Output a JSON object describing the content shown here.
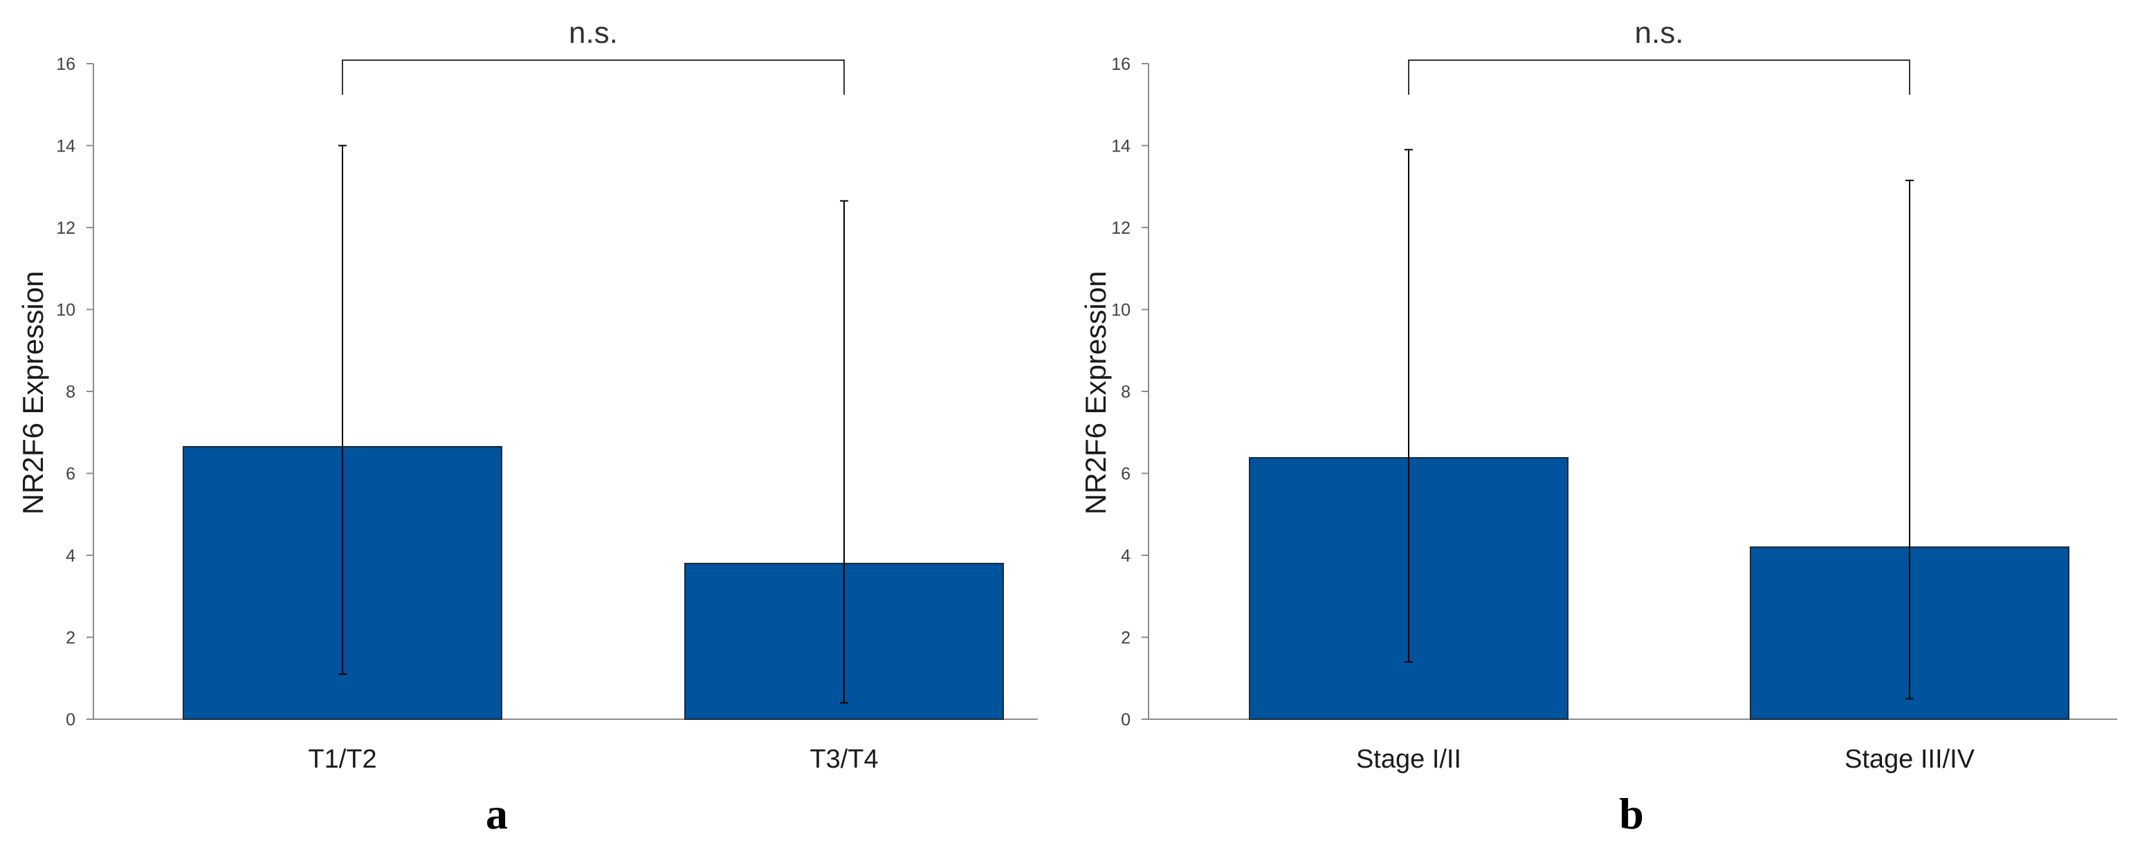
{
  "chart_data": [
    {
      "type": "bar",
      "panel": "a",
      "categories": [
        "T1/T2",
        "T3/T4"
      ],
      "values": [
        6.65,
        3.8
      ],
      "error_bars": [
        {
          "lower": 1.1,
          "upper": 14.0
        },
        {
          "lower": 0.4,
          "upper": 12.65
        }
      ],
      "ylabel": "NR2F6 Expression",
      "xlabel": "",
      "ylim": [
        0,
        16
      ],
      "yticks": [
        0,
        2,
        4,
        6,
        8,
        10,
        12,
        14,
        16
      ],
      "significance": "n.s.",
      "grid": false,
      "colors": {
        "bar": "#00539c",
        "bar_edge": "#1a2a3a",
        "axis": "#8c8c8c"
      }
    },
    {
      "type": "bar",
      "panel": "b",
      "categories": [
        "Stage I/II",
        "Stage III/IV"
      ],
      "values": [
        6.38,
        4.2
      ],
      "error_bars": [
        {
          "lower": 1.4,
          "upper": 13.9
        },
        {
          "lower": 0.5,
          "upper": 13.15
        }
      ],
      "ylabel": "NR2F6 Expression",
      "xlabel": "",
      "ylim": [
        0,
        16
      ],
      "yticks": [
        0,
        2,
        4,
        6,
        8,
        10,
        12,
        14,
        16
      ],
      "significance": "n.s.",
      "grid": false,
      "colors": {
        "bar": "#00539c",
        "bar_edge": "#1a2a3a",
        "axis": "#8c8c8c"
      }
    }
  ]
}
